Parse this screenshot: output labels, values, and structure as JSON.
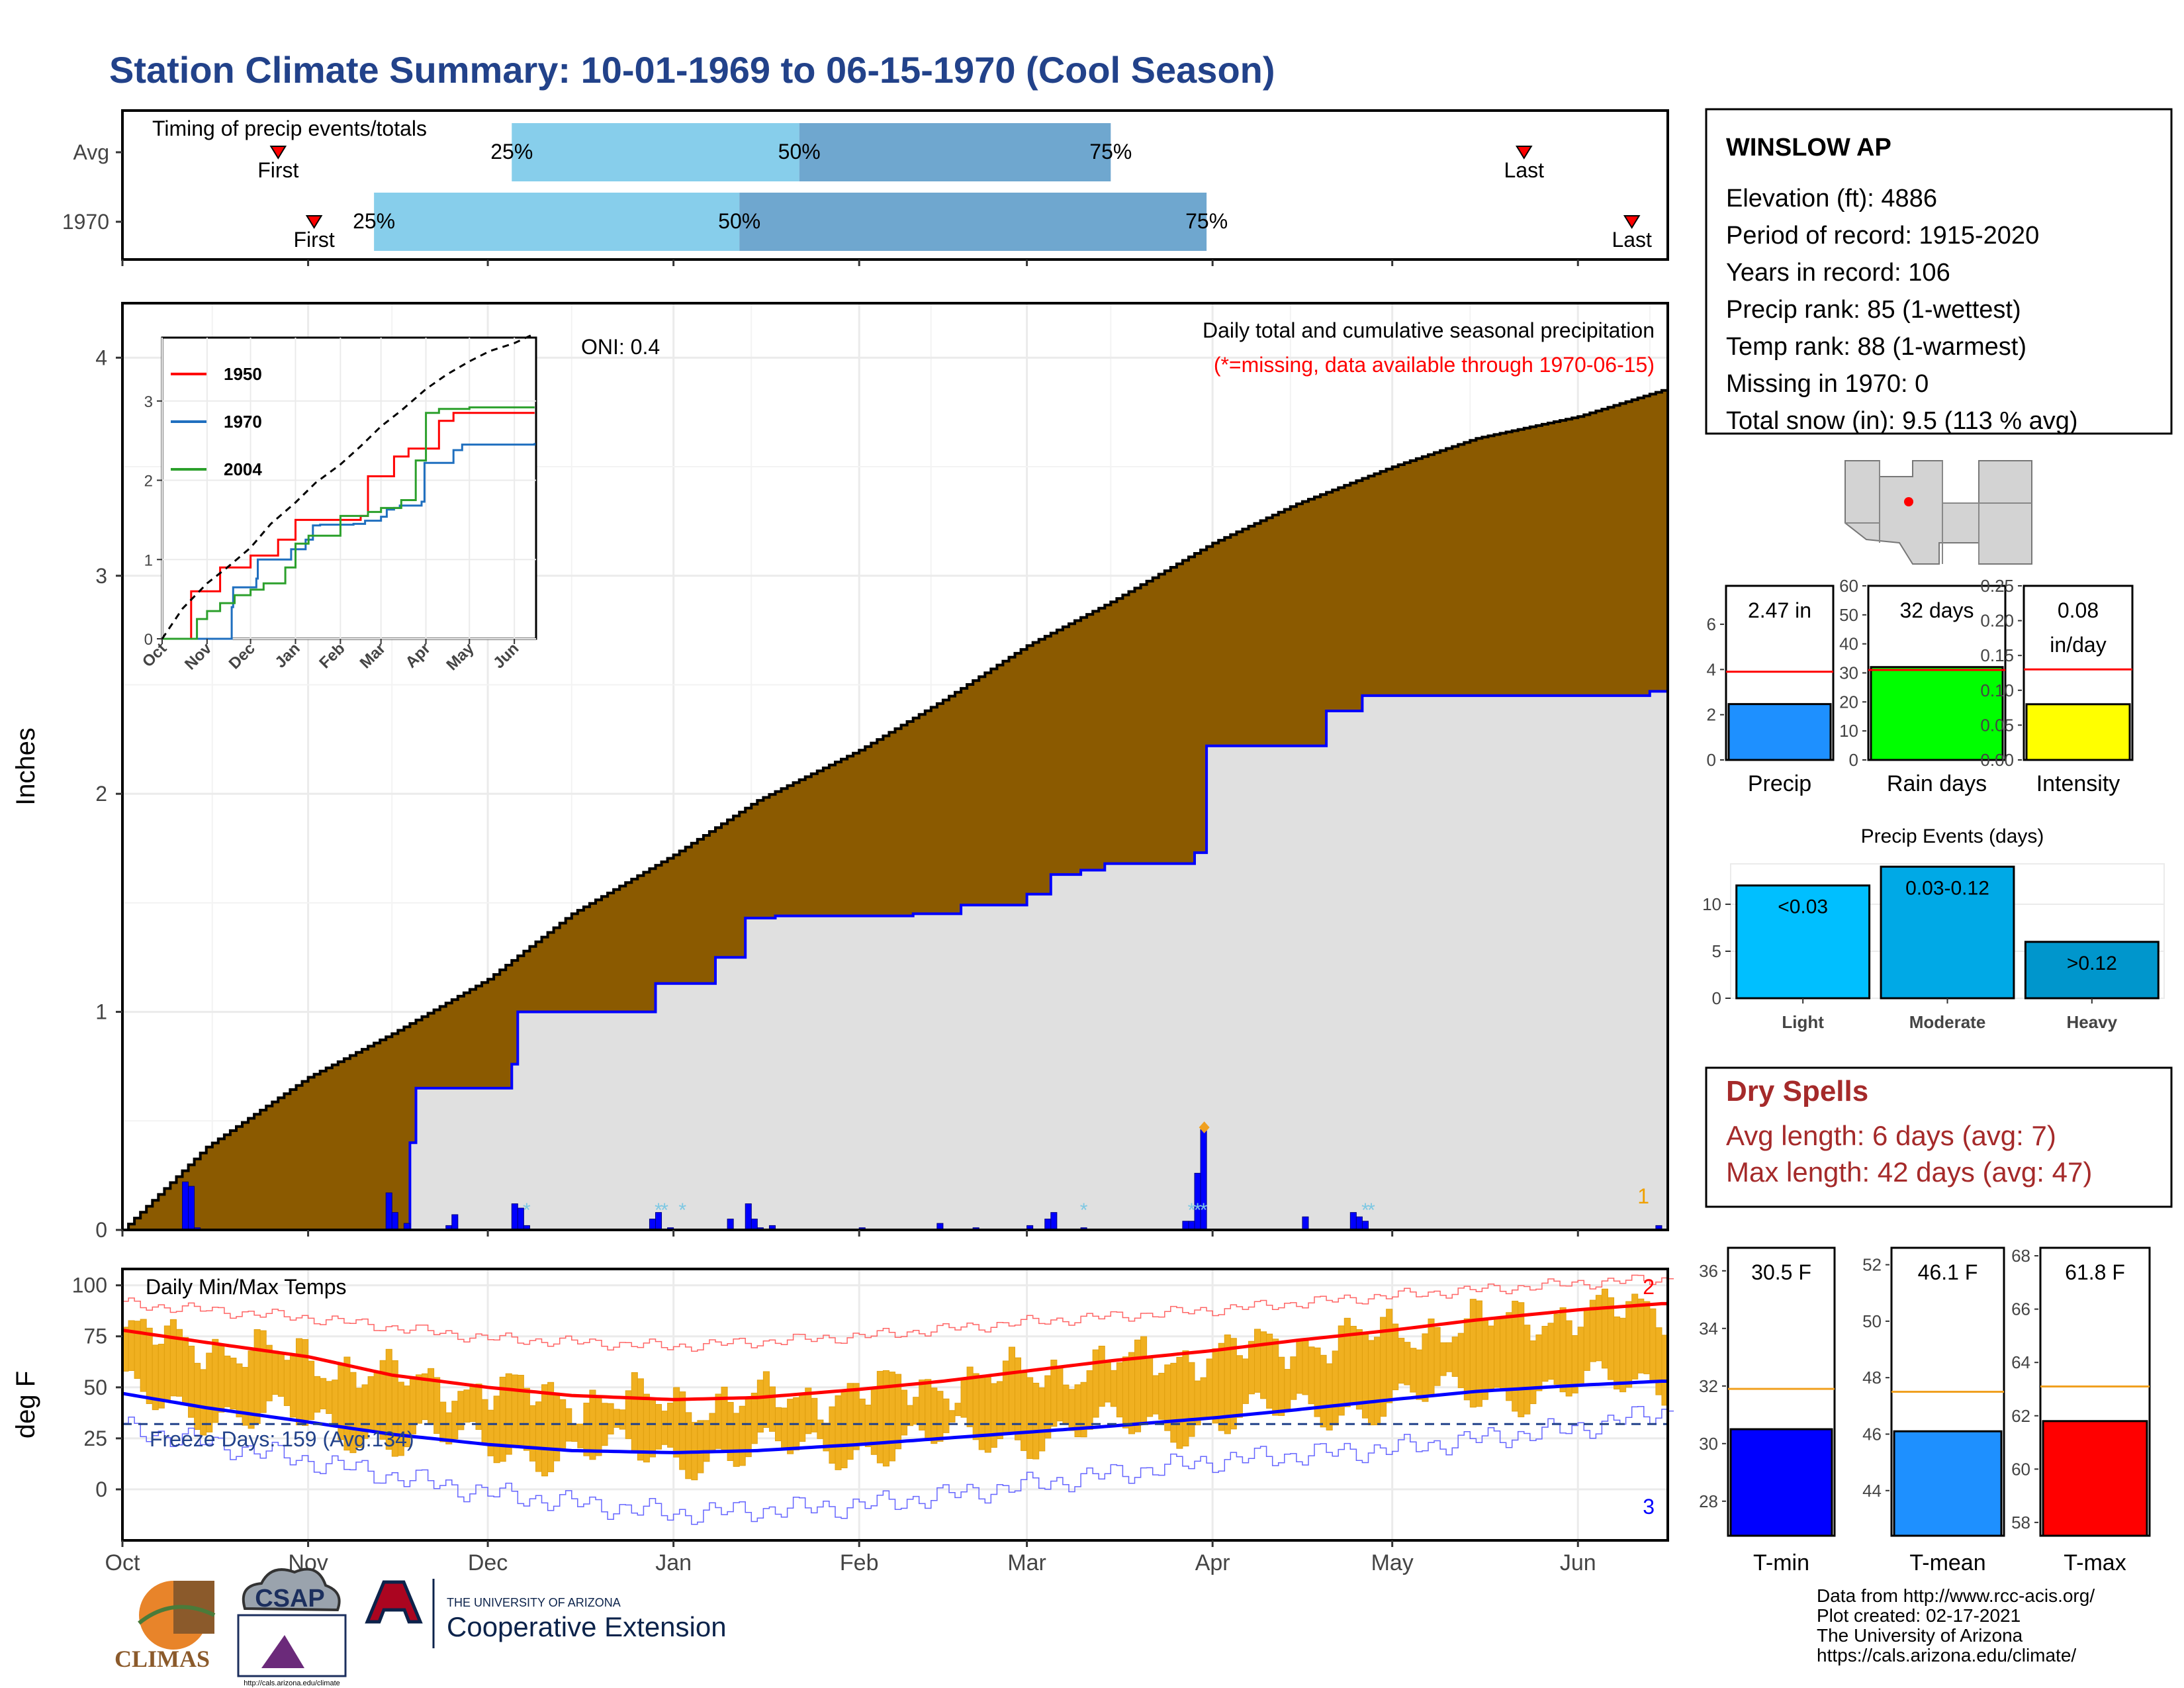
{
  "page": {
    "title": "Station Climate Summary: 10-01-1969 to 06-15-1970 (Cool Season)",
    "footer_lines": [
      "Data from http://www.rcc-acis.org/",
      "Plot created: 02-17-2021",
      "The University of Arizona",
      "https://cals.arizona.edu/climate/"
    ],
    "logos": {
      "climas": "CLIMAS",
      "csap": "CSAP",
      "csap_url": "http://cals.arizona.edu/climate",
      "ua_small": "THE UNIVERSITY OF ARIZONA",
      "ua_ext": "Cooperative Extension"
    },
    "colors": {
      "title": "#22428a",
      "precip_fill": "#8b5a00",
      "avg_fill": "#e0e0e0",
      "light_blue": "#87ceeb",
      "mid_blue": "#6fa7cf",
      "red": "#ff0000",
      "blue": "#0000ff",
      "orange": "#f0b020",
      "dry_spell_text": "#a52a2a"
    }
  },
  "station": {
    "name": "WINSLOW AP",
    "lines": [
      "Elevation (ft): 4886",
      "Period of record: 1915-2020",
      "Years in record: 106",
      "Precip rank: 85 (1-wettest)",
      "Temp rank: 88 (1-warmest)",
      "Missing in 1970: 0",
      "Total snow (in): 9.5 (113 % avg)"
    ]
  },
  "dry_spells": {
    "title": "Dry Spells",
    "avg": "Avg length: 6 days (avg: 7)",
    "max": "Max length: 42 days (avg: 47)"
  },
  "chart_data": [
    {
      "id": "timing",
      "type": "bar",
      "title": "Timing of precip events/totals",
      "rows": [
        {
          "label": "Avg",
          "first": "10-27",
          "q25": "12-05",
          "q50": "01-22",
          "q75": "03-15",
          "last": "05-23"
        },
        {
          "label": "1970",
          "first": "11-02",
          "q25": "11-12",
          "q50": "01-12",
          "q75": "03-31",
          "last": "06-10"
        }
      ],
      "marker_labels": {
        "first": "First",
        "last": "Last",
        "q25": "25%",
        "q50": "50%",
        "q75": "75%"
      }
    },
    {
      "id": "precip",
      "type": "area",
      "title": "Daily total and cumulative seasonal precipitation",
      "subtitle": "(*=missing, data available through 1970-06-15)",
      "annotation": "ONI: 0.4",
      "corner_label": "1",
      "ylabel": "Inches",
      "ylim": [
        0,
        4.25
      ],
      "yticks": [
        0,
        1,
        2,
        3,
        4
      ],
      "x_ticks": [
        "Oct",
        "Nov",
        "Dec",
        "Jan",
        "Feb",
        "Mar",
        "Apr",
        "May",
        "Jun"
      ],
      "avg_cumulative": {
        "x": [
          "10-01",
          "10-15",
          "11-01",
          "11-15",
          "12-01",
          "12-15",
          "01-01",
          "01-15",
          "02-01",
          "02-15",
          "03-01",
          "03-15",
          "04-01",
          "04-15",
          "05-01",
          "05-15",
          "06-01",
          "06-15"
        ],
        "values": [
          0.0,
          0.38,
          0.7,
          0.9,
          1.15,
          1.45,
          1.72,
          1.97,
          2.2,
          2.43,
          2.68,
          2.88,
          3.15,
          3.33,
          3.5,
          3.63,
          3.73,
          3.85
        ]
      },
      "cumulative_1970": {
        "x": [
          "10-01",
          "11-03",
          "11-18",
          "11-19",
          "12-05",
          "12-06",
          "12-28",
          "12-29",
          "01-08",
          "01-13",
          "01-18",
          "02-10",
          "02-18",
          "03-01",
          "03-05",
          "03-10",
          "03-14",
          "03-29",
          "03-31",
          "04-20",
          "04-26",
          "06-13",
          "06-15"
        ],
        "values": [
          0.0,
          0.0,
          0.4,
          0.65,
          0.76,
          1.0,
          1.0,
          1.13,
          1.25,
          1.43,
          1.44,
          1.45,
          1.49,
          1.54,
          1.63,
          1.65,
          1.68,
          1.73,
          2.22,
          2.38,
          2.45,
          2.47,
          2.47
        ]
      },
      "daily_bars": {
        "x": [
          "10-11",
          "10-12",
          "10-13",
          "11-14",
          "11-15",
          "11-17",
          "11-24",
          "11-25",
          "12-05",
          "12-06",
          "12-07",
          "12-28",
          "12-29",
          "12-31",
          "01-10",
          "01-13",
          "01-14",
          "01-15",
          "01-17",
          "02-01",
          "02-14",
          "02-20",
          "03-01",
          "03-04",
          "03-05",
          "03-10",
          "03-27",
          "03-28",
          "03-29",
          "03-30",
          "04-16",
          "04-24",
          "04-25",
          "04-26",
          "06-14"
        ],
        "values": [
          0.22,
          0.2,
          0.01,
          0.17,
          0.08,
          0.03,
          0.02,
          0.07,
          0.12,
          0.1,
          0.02,
          0.05,
          0.08,
          0.01,
          0.05,
          0.12,
          0.05,
          0.01,
          0.02,
          0.01,
          0.03,
          0.01,
          0.02,
          0.05,
          0.08,
          0.01,
          0.04,
          0.04,
          0.26,
          0.46,
          0.06,
          0.08,
          0.06,
          0.04,
          0.02
        ]
      },
      "snow_days": [
        "12-07",
        "12-29",
        "12-30",
        "01-02",
        "03-10",
        "03-28",
        "03-29",
        "03-30",
        "04-26",
        "04-27"
      ],
      "max_marker": {
        "x": "03-31",
        "value": 0.47
      }
    },
    {
      "id": "precip_inset",
      "type": "line",
      "x_ticks": [
        "Oct",
        "Nov",
        "Dec",
        "Jan",
        "Feb",
        "Mar",
        "Apr",
        "May",
        "Jun"
      ],
      "yticks": [
        0,
        1,
        2,
        3
      ],
      "ylim": [
        0,
        3.8
      ],
      "series": [
        {
          "name": "1950",
          "color": "#ff0000",
          "x": [
            "10-01",
            "10-20",
            "10-21",
            "11-01",
            "11-10",
            "11-22",
            "12-01",
            "12-10",
            "12-20",
            "01-01",
            "01-20",
            "02-15",
            "02-20",
            "03-01",
            "03-10",
            "03-20",
            "04-01",
            "04-10",
            "04-20",
            "06-15"
          ],
          "values": [
            0,
            0,
            0.6,
            0.6,
            0.9,
            0.9,
            1.05,
            1.05,
            1.25,
            1.5,
            1.5,
            1.55,
            2.05,
            2.05,
            2.3,
            2.4,
            2.4,
            2.75,
            2.85,
            2.85
          ]
        },
        {
          "name": "1970",
          "color": "#1f6fbf",
          "x": [
            "10-01",
            "11-03",
            "11-18",
            "11-19",
            "12-05",
            "12-06",
            "12-28",
            "12-29",
            "01-08",
            "01-13",
            "01-18",
            "02-10",
            "02-18",
            "03-01",
            "03-05",
            "03-10",
            "03-14",
            "03-29",
            "03-31",
            "04-20",
            "04-26",
            "06-15"
          ],
          "values": [
            0,
            0,
            0.4,
            0.65,
            0.76,
            1.0,
            1.0,
            1.13,
            1.25,
            1.43,
            1.44,
            1.45,
            1.49,
            1.54,
            1.63,
            1.65,
            1.68,
            1.73,
            2.22,
            2.38,
            2.45,
            2.47
          ]
        },
        {
          "name": "2004",
          "color": "#2ca02c",
          "x": [
            "10-01",
            "10-25",
            "11-01",
            "11-10",
            "11-20",
            "12-01",
            "12-10",
            "12-25",
            "01-01",
            "01-10",
            "02-01",
            "02-20",
            "03-01",
            "03-15",
            "03-25",
            "04-01",
            "04-10",
            "05-01",
            "06-15"
          ],
          "values": [
            0,
            0.25,
            0.35,
            0.45,
            0.55,
            0.62,
            0.7,
            0.9,
            1.2,
            1.3,
            1.55,
            1.6,
            1.65,
            1.75,
            2.25,
            2.85,
            2.9,
            2.92,
            2.92
          ]
        },
        {
          "name": "avg",
          "color": "#000000",
          "x": [
            "10-01",
            "10-15",
            "11-01",
            "11-15",
            "12-01",
            "12-15",
            "01-01",
            "01-15",
            "02-01",
            "02-15",
            "03-01",
            "03-15",
            "04-01",
            "04-15",
            "05-01",
            "05-15",
            "06-01",
            "06-15"
          ],
          "values": [
            0.0,
            0.38,
            0.7,
            0.9,
            1.15,
            1.45,
            1.72,
            1.97,
            2.2,
            2.43,
            2.68,
            2.88,
            3.15,
            3.33,
            3.5,
            3.63,
            3.73,
            3.85
          ]
        }
      ]
    },
    {
      "id": "temps",
      "type": "bar",
      "title": "Daily Min/Max Temps",
      "ylabel": "deg F",
      "ylim": [
        -25,
        108
      ],
      "yticks": [
        0,
        25,
        50,
        75,
        100
      ],
      "x_ticks": [
        "Oct",
        "Nov",
        "Dec",
        "Jan",
        "Feb",
        "Mar",
        "Apr",
        "May",
        "Jun"
      ],
      "freeze_label": "Freeze Days: 159 (Avg:134)",
      "freeze_line": 32,
      "max_count_label": "2",
      "min_count_label": "3",
      "avg_max": {
        "x": [
          "10-01",
          "10-15",
          "11-01",
          "11-15",
          "12-01",
          "12-15",
          "01-01",
          "01-15",
          "02-01",
          "02-15",
          "03-01",
          "03-15",
          "04-01",
          "04-15",
          "05-01",
          "05-15",
          "06-01",
          "06-15"
        ],
        "values": [
          78,
          72,
          65,
          56,
          50,
          46,
          44,
          45,
          49,
          53,
          58,
          63,
          68,
          73,
          78,
          83,
          88,
          91
        ]
      },
      "avg_min": {
        "x": [
          "10-01",
          "10-15",
          "11-01",
          "11-15",
          "12-01",
          "12-15",
          "01-01",
          "01-15",
          "02-01",
          "02-15",
          "03-01",
          "03-15",
          "04-01",
          "04-15",
          "05-01",
          "05-15",
          "06-01",
          "06-15"
        ],
        "values": [
          47,
          40,
          33,
          27,
          22,
          19,
          18,
          19,
          22,
          25,
          28,
          31,
          35,
          39,
          44,
          48,
          51,
          53
        ]
      },
      "record_high": {
        "x": [
          "10-01",
          "11-01",
          "12-01",
          "01-01",
          "02-01",
          "03-01",
          "04-01",
          "05-01",
          "06-01",
          "06-15"
        ],
        "values": [
          91,
          84,
          74,
          70,
          75,
          82,
          88,
          95,
          101,
          103
        ]
      },
      "record_low": {
        "x": [
          "10-01",
          "11-01",
          "12-01",
          "01-01",
          "02-01",
          "03-01",
          "04-01",
          "05-01",
          "06-01",
          "06-15"
        ],
        "values": [
          30,
          14,
          -2,
          -12,
          -8,
          2,
          14,
          20,
          30,
          38
        ]
      }
    },
    {
      "id": "precip_bars",
      "type": "bar",
      "categories": [
        "Precip"
      ],
      "value": 2.47,
      "avg": 3.9,
      "label": "2.47 in",
      "ylim": [
        0,
        7.7
      ],
      "yticks": [
        0,
        2,
        4,
        6
      ],
      "color": "#1e90ff"
    },
    {
      "id": "raindays_bars",
      "type": "bar",
      "categories": [
        "Rain days"
      ],
      "value": 32,
      "avg": 31,
      "label": "32 days",
      "ylim": [
        0,
        60
      ],
      "yticks": [
        0,
        10,
        20,
        30,
        40,
        50,
        60
      ],
      "color": "#00ff00"
    },
    {
      "id": "intensity_bars",
      "type": "bar",
      "categories": [
        "Intensity"
      ],
      "value": 0.08,
      "avg": 0.13,
      "label": "0.08",
      "label2": "in/day",
      "ylim": [
        0,
        0.25
      ],
      "yticks": [
        "0.00",
        "0.05",
        "0.10",
        "0.15",
        "0.20",
        "0.25"
      ],
      "color": "#ffff00"
    },
    {
      "id": "precip_events",
      "type": "bar",
      "title": "Precip Events (days)",
      "categories": [
        "Light",
        "Moderate",
        "Heavy"
      ],
      "labels": [
        "<0.03",
        "0.03-0.12",
        ">0.12"
      ],
      "values": [
        12,
        14,
        6
      ],
      "ylim": [
        0,
        14.3
      ],
      "yticks": [
        0,
        5,
        10
      ],
      "colors": [
        "#00bfff",
        "#00a9e6",
        "#0096cc"
      ]
    },
    {
      "id": "tmin_bar",
      "type": "bar",
      "categories": [
        "T-min"
      ],
      "value": 30.5,
      "avg": 31.9,
      "label": "30.5 F",
      "ylim": [
        26.8,
        36.8
      ],
      "yticks": [
        28,
        30,
        32,
        34,
        36
      ],
      "color": "#0000ff"
    },
    {
      "id": "tmean_bar",
      "type": "bar",
      "categories": [
        "T-mean"
      ],
      "value": 46.1,
      "avg": 47.5,
      "label": "46.1 F",
      "ylim": [
        42.4,
        52.6
      ],
      "yticks": [
        44,
        46,
        48,
        50,
        52
      ],
      "color": "#1e90ff"
    },
    {
      "id": "tmax_bar",
      "type": "bar",
      "categories": [
        "T-max"
      ],
      "value": 61.8,
      "avg": 63.1,
      "label": "61.8 F",
      "ylim": [
        57.5,
        68.3
      ],
      "yticks": [
        58,
        60,
        62,
        64,
        66,
        68
      ],
      "color": "#ff0000"
    }
  ]
}
